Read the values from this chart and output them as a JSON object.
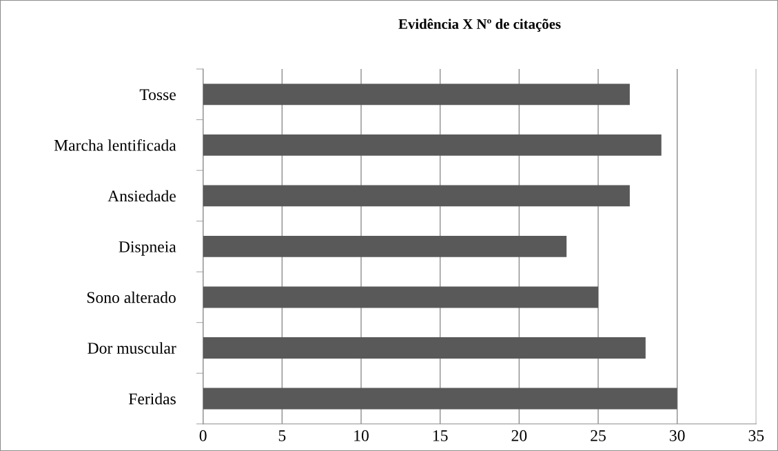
{
  "chart_data": {
    "type": "bar",
    "orientation": "horizontal",
    "title": "Evidência X Nº de citações",
    "categories": [
      "Tosse",
      "Marcha lentificada",
      "Ansiedade",
      "Dispneia",
      "Sono alterado",
      "Dor muscular",
      "Feridas"
    ],
    "values": [
      27,
      29,
      27,
      23,
      25,
      28,
      30
    ],
    "color": "#595959",
    "xlim": [
      0,
      35
    ],
    "xticks": [
      0,
      5,
      10,
      15,
      20,
      25,
      30,
      35
    ],
    "grid": "x"
  }
}
